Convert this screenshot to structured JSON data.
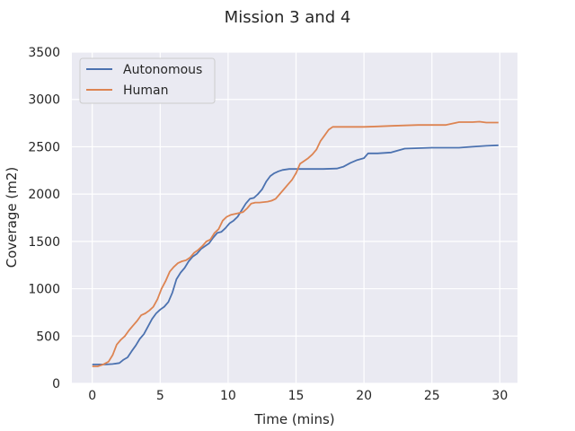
{
  "chart_data": {
    "type": "line",
    "title": "Mission 3 and 4",
    "xlabel": "Time (mins)",
    "ylabel": "Coverage (m2)",
    "xlim": [
      -1.5,
      31.3
    ],
    "ylim": [
      0,
      3500
    ],
    "xticks": [
      0,
      5,
      10,
      15,
      20,
      25,
      30
    ],
    "yticks": [
      0,
      500,
      1000,
      1500,
      2000,
      2500,
      3000,
      3500
    ],
    "grid": true,
    "legend_position": "top-left",
    "series": [
      {
        "name": "Autonomous",
        "color": "#4c72b0",
        "x": [
          0,
          0.5,
          1,
          1.5,
          2,
          2.3,
          2.6,
          2.9,
          3.2,
          3.5,
          3.8,
          4.1,
          4.4,
          4.7,
          5.0,
          5.3,
          5.6,
          5.9,
          6.2,
          6.5,
          6.8,
          7.1,
          7.4,
          7.7,
          8.0,
          8.3,
          8.6,
          8.9,
          9.2,
          9.5,
          9.8,
          10.1,
          10.4,
          10.7,
          11.0,
          11.3,
          11.6,
          11.9,
          12.2,
          12.5,
          12.8,
          13.1,
          13.4,
          13.7,
          14.0,
          14.5,
          15.0,
          16.0,
          17.0,
          18.0,
          18.5,
          19.0,
          19.5,
          20.0,
          20.3,
          21.0,
          22.0,
          22.5,
          23.0,
          24.0,
          25.0,
          26.0,
          27.0,
          28.0,
          29.0,
          29.9
        ],
        "y": [
          200,
          200,
          200,
          205,
          215,
          250,
          275,
          340,
          400,
          470,
          520,
          600,
          680,
          740,
          780,
          810,
          860,
          960,
          1100,
          1170,
          1220,
          1290,
          1340,
          1370,
          1420,
          1450,
          1480,
          1540,
          1590,
          1600,
          1640,
          1690,
          1720,
          1760,
          1830,
          1900,
          1950,
          1960,
          2000,
          2050,
          2130,
          2190,
          2220,
          2240,
          2255,
          2265,
          2265,
          2265,
          2265,
          2270,
          2290,
          2330,
          2360,
          2380,
          2430,
          2430,
          2440,
          2460,
          2480,
          2485,
          2490,
          2490,
          2490,
          2500,
          2510,
          2515
        ]
      },
      {
        "name": "Human",
        "color": "#dd8452",
        "x": [
          0,
          0.4,
          0.8,
          1.2,
          1.5,
          1.8,
          2.1,
          2.4,
          2.7,
          3.0,
          3.3,
          3.6,
          3.9,
          4.2,
          4.5,
          4.8,
          5.1,
          5.4,
          5.7,
          6.0,
          6.3,
          6.6,
          6.9,
          7.2,
          7.5,
          7.8,
          8.1,
          8.4,
          8.7,
          9.0,
          9.3,
          9.6,
          9.9,
          10.2,
          10.5,
          10.8,
          11.1,
          11.4,
          11.7,
          12.0,
          12.3,
          12.6,
          12.9,
          13.2,
          13.5,
          13.8,
          14.1,
          14.4,
          14.7,
          15.0,
          15.3,
          15.6,
          15.9,
          16.2,
          16.5,
          16.8,
          17.1,
          17.4,
          17.7,
          18.0,
          18.5,
          19.0,
          20.0,
          21.0,
          22.0,
          23.0,
          24.0,
          25.0,
          26.0,
          26.5,
          27.0,
          28.0,
          28.5,
          29.0,
          29.9
        ],
        "y": [
          180,
          180,
          200,
          230,
          300,
          410,
          460,
          500,
          560,
          610,
          660,
          720,
          740,
          770,
          810,
          890,
          1000,
          1080,
          1180,
          1230,
          1270,
          1290,
          1300,
          1330,
          1380,
          1410,
          1450,
          1500,
          1520,
          1590,
          1630,
          1720,
          1760,
          1780,
          1790,
          1800,
          1810,
          1850,
          1900,
          1910,
          1910,
          1915,
          1920,
          1930,
          1950,
          2000,
          2050,
          2100,
          2150,
          2220,
          2320,
          2350,
          2380,
          2420,
          2470,
          2560,
          2620,
          2680,
          2710,
          2710,
          2710,
          2710,
          2710,
          2715,
          2720,
          2725,
          2730,
          2730,
          2730,
          2745,
          2760,
          2760,
          2765,
          2755,
          2755
        ]
      }
    ]
  }
}
